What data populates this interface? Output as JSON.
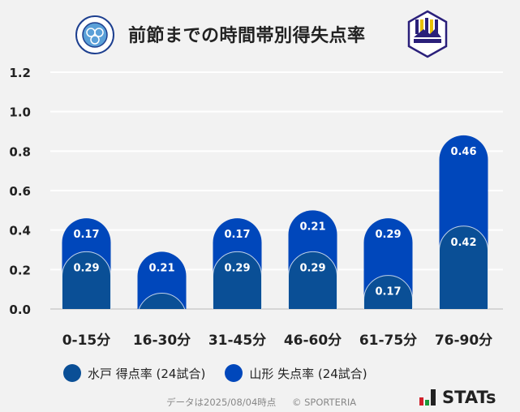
{
  "header": {
    "title": "前節までの時間帯別得失点率",
    "home_logo": "FC MITO HOLLYHOCK",
    "away_logo": "Montedio YAMAGATA"
  },
  "chart_data": {
    "type": "bar",
    "stacked": true,
    "title": "前節までの時間帯別得失点率",
    "categories": [
      "0-15分",
      "16-30分",
      "31-45分",
      "46-60分",
      "61-75分",
      "76-90分"
    ],
    "series": [
      {
        "name": "水戸 得点率 (24試合)",
        "color": "#0a4f96",
        "values": [
          0.29,
          0.08,
          0.29,
          0.29,
          0.17,
          0.42
        ],
        "labels": [
          "0.29",
          "",
          "0.29",
          "0.29",
          "0.17",
          "0.42"
        ]
      },
      {
        "name": "山形 失点率 (24試合)",
        "color": "#0047bb",
        "values": [
          0.17,
          0.21,
          0.17,
          0.21,
          0.29,
          0.46
        ],
        "labels": [
          "0.17",
          "0.21",
          "0.17",
          "0.21",
          "0.29",
          "0.46"
        ]
      }
    ],
    "ylim": [
      0,
      1.2
    ],
    "yticks": [
      "0.0",
      "0.2",
      "0.4",
      "0.6",
      "0.8",
      "1.0",
      "1.2"
    ],
    "grid": true,
    "legend": "bottom"
  },
  "legend": {
    "items": [
      {
        "label": "水戸 得点率 (24試合)",
        "color": "#0a4f96"
      },
      {
        "label": "山形 失点率 (24試合)",
        "color": "#0047bb"
      }
    ]
  },
  "footer": {
    "date_note": "データは2025/08/04時点",
    "copyright": "© SPORTERIA",
    "brand": "STATs"
  }
}
